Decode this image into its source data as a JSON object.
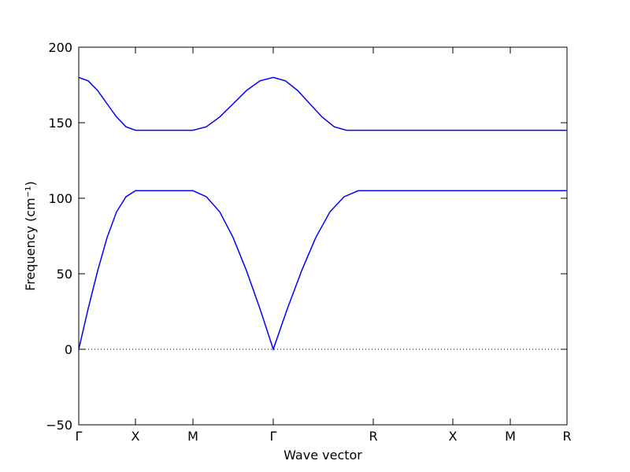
{
  "chart_data": {
    "type": "line",
    "xlabel": "Wave vector",
    "ylabel": "Frequency (cm⁻¹)",
    "xlim": [
      0,
      6.2
    ],
    "ylim": [
      -50,
      200
    ],
    "xticks": [
      {
        "value": 0,
        "label": "Γ"
      },
      {
        "value": 0.72,
        "label": "X"
      },
      {
        "value": 1.45,
        "label": "M"
      },
      {
        "value": 2.47,
        "label": "Γ"
      },
      {
        "value": 3.74,
        "label": "R"
      },
      {
        "value": 4.75,
        "label": "X"
      },
      {
        "value": 5.48,
        "label": "M"
      },
      {
        "value": 6.2,
        "label": "R"
      }
    ],
    "yticks": [
      {
        "value": -50,
        "label": "−50"
      },
      0,
      50,
      100,
      150,
      200
    ],
    "zero_line": 0,
    "series": [
      {
        "color": "#0000ff",
        "x": [
          0,
          0.12,
          0.24,
          0.36,
          0.48,
          0.6,
          0.72,
          1.45,
          1.62,
          1.79,
          1.96,
          2.13,
          2.3,
          2.47,
          2.65,
          2.83,
          3.01,
          3.19,
          3.37,
          3.55,
          6.2
        ],
        "values": [
          0,
          27,
          52,
          74,
          91,
          101,
          105,
          105,
          101,
          91,
          74,
          52,
          27,
          0,
          27,
          52,
          74,
          91,
          101,
          105,
          105
        ]
      },
      {
        "color": "#0000ff",
        "x": [
          0,
          0.12,
          0.24,
          0.36,
          0.48,
          0.6,
          0.72,
          1.45,
          1.62,
          1.79,
          1.96,
          2.13,
          2.3,
          2.47,
          2.625,
          2.78,
          2.935,
          3.09,
          3.245,
          3.4,
          6.2
        ],
        "values": [
          180,
          177.7,
          171.3,
          162.5,
          153.8,
          147.3,
          145,
          145,
          147.3,
          153.8,
          162.5,
          171.3,
          177.7,
          180,
          177.7,
          171.3,
          162.5,
          153.8,
          147.3,
          145,
          145
        ]
      }
    ]
  }
}
